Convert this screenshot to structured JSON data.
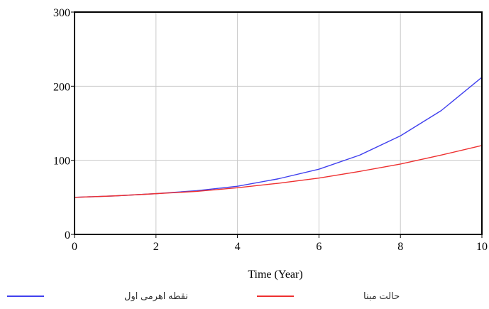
{
  "chart_data": {
    "type": "line",
    "title": "",
    "xlabel": "Time (Year)",
    "ylabel": "",
    "x": [
      0,
      1,
      2,
      3,
      4,
      5,
      6,
      7,
      8,
      9,
      10
    ],
    "xlim": [
      0,
      10
    ],
    "ylim": [
      0,
      300
    ],
    "xticks": [
      0,
      2,
      4,
      6,
      8,
      10
    ],
    "yticks": [
      0,
      100,
      200,
      300
    ],
    "grid": true,
    "legend_position": "bottom",
    "series": [
      {
        "name": "نقطه اهرمی اول",
        "color": "#4040ee",
        "values": [
          50,
          52,
          55,
          59,
          65,
          75,
          88,
          107,
          133,
          167,
          212
        ]
      },
      {
        "name": "حالت مبنا",
        "color": "#ee3030",
        "values": [
          50,
          52,
          55,
          58,
          63,
          69,
          76,
          85,
          95,
          107,
          120
        ]
      }
    ]
  }
}
